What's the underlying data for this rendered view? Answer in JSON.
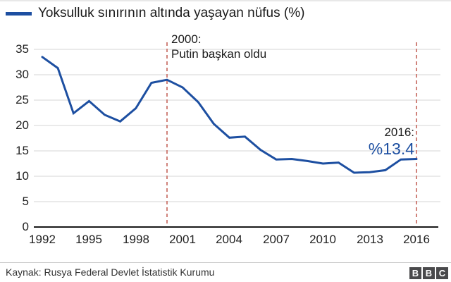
{
  "header": {
    "legend_label": "Yoksulluk sınırının altında yaşayan nüfus (%)"
  },
  "chart_data": {
    "type": "line",
    "title": "Yoksulluk sınırının altında yaşayan nüfus (%)",
    "x": [
      1992,
      1993,
      1994,
      1995,
      1996,
      1997,
      1998,
      1999,
      2000,
      2001,
      2002,
      2003,
      2004,
      2005,
      2006,
      2007,
      2008,
      2009,
      2010,
      2011,
      2012,
      2013,
      2014,
      2015,
      2016
    ],
    "values": [
      33.5,
      31.3,
      22.4,
      24.8,
      22.1,
      20.8,
      23.4,
      28.4,
      29.0,
      27.5,
      24.6,
      20.3,
      17.6,
      17.8,
      15.2,
      13.3,
      13.4,
      13.0,
      12.5,
      12.7,
      10.7,
      10.8,
      11.2,
      13.3,
      13.4
    ],
    "ylim": [
      0,
      35
    ],
    "yticks": [
      35,
      30,
      25,
      20,
      15,
      10,
      5,
      0
    ],
    "xticks": [
      1992,
      1995,
      1998,
      2001,
      2004,
      2007,
      2010,
      2013,
      2016
    ],
    "grid": "horizontal-only",
    "legend_position": "top-left",
    "line_color": "#1d4fa1",
    "grid_color": "#d6d6d6",
    "axis_color": "#1a1a1a",
    "event_line_color": "#d0837b",
    "annotations": [
      {
        "x": 2000,
        "line1": "2000:",
        "line2": "Putin başkan oldu"
      },
      {
        "x": 2016,
        "line1": "2016:",
        "line2": "%13.4",
        "value_color": "#1d4fa1"
      }
    ]
  },
  "footer": {
    "source": "Kaynak: Rusya Federal Devlet İstatistik Kurumu",
    "logo": [
      "B",
      "B",
      "C"
    ]
  }
}
